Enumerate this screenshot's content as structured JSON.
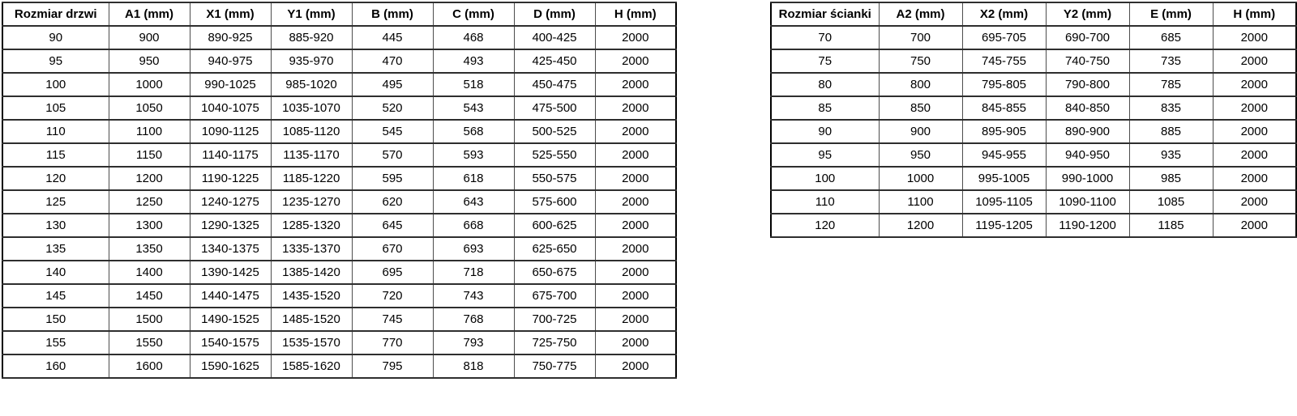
{
  "colors": {
    "border_outer": "#000000",
    "border_inner": "#4d4d4d",
    "text": "#000000",
    "background": "#ffffff"
  },
  "tables": [
    {
      "name": "door-size-table",
      "headers": [
        "Rozmiar drzwi",
        "A1 (mm)",
        "X1 (mm)",
        "Y1 (mm)",
        "B (mm)",
        "C (mm)",
        "D (mm)",
        "H (mm)"
      ],
      "rows": [
        [
          "90",
          "900",
          "890-925",
          "885-920",
          "445",
          "468",
          "400-425",
          "2000"
        ],
        [
          "95",
          "950",
          "940-975",
          "935-970",
          "470",
          "493",
          "425-450",
          "2000"
        ],
        [
          "100",
          "1000",
          "990-1025",
          "985-1020",
          "495",
          "518",
          "450-475",
          "2000"
        ],
        [
          "105",
          "1050",
          "1040-1075",
          "1035-1070",
          "520",
          "543",
          "475-500",
          "2000"
        ],
        [
          "110",
          "1100",
          "1090-1125",
          "1085-1120",
          "545",
          "568",
          "500-525",
          "2000"
        ],
        [
          "115",
          "1150",
          "1140-1175",
          "1135-1170",
          "570",
          "593",
          "525-550",
          "2000"
        ],
        [
          "120",
          "1200",
          "1190-1225",
          "1185-1220",
          "595",
          "618",
          "550-575",
          "2000"
        ],
        [
          "125",
          "1250",
          "1240-1275",
          "1235-1270",
          "620",
          "643",
          "575-600",
          "2000"
        ],
        [
          "130",
          "1300",
          "1290-1325",
          "1285-1320",
          "645",
          "668",
          "600-625",
          "2000"
        ],
        [
          "135",
          "1350",
          "1340-1375",
          "1335-1370",
          "670",
          "693",
          "625-650",
          "2000"
        ],
        [
          "140",
          "1400",
          "1390-1425",
          "1385-1420",
          "695",
          "718",
          "650-675",
          "2000"
        ],
        [
          "145",
          "1450",
          "1440-1475",
          "1435-1520",
          "720",
          "743",
          "675-700",
          "2000"
        ],
        [
          "150",
          "1500",
          "1490-1525",
          "1485-1520",
          "745",
          "768",
          "700-725",
          "2000"
        ],
        [
          "155",
          "1550",
          "1540-1575",
          "1535-1570",
          "770",
          "793",
          "725-750",
          "2000"
        ],
        [
          "160",
          "1600",
          "1590-1625",
          "1585-1620",
          "795",
          "818",
          "750-775",
          "2000"
        ]
      ]
    },
    {
      "name": "wall-size-table",
      "headers": [
        "Rozmiar ścianki",
        "A2 (mm)",
        "X2 (mm)",
        "Y2 (mm)",
        "E (mm)",
        "H (mm)"
      ],
      "rows": [
        [
          "70",
          "700",
          "695-705",
          "690-700",
          "685",
          "2000"
        ],
        [
          "75",
          "750",
          "745-755",
          "740-750",
          "735",
          "2000"
        ],
        [
          "80",
          "800",
          "795-805",
          "790-800",
          "785",
          "2000"
        ],
        [
          "85",
          "850",
          "845-855",
          "840-850",
          "835",
          "2000"
        ],
        [
          "90",
          "900",
          "895-905",
          "890-900",
          "885",
          "2000"
        ],
        [
          "95",
          "950",
          "945-955",
          "940-950",
          "935",
          "2000"
        ],
        [
          "100",
          "1000",
          "995-1005",
          "990-1000",
          "985",
          "2000"
        ],
        [
          "110",
          "1100",
          "1095-1105",
          "1090-1100",
          "1085",
          "2000"
        ],
        [
          "120",
          "1200",
          "1195-1205",
          "1190-1200",
          "1185",
          "2000"
        ]
      ]
    }
  ]
}
